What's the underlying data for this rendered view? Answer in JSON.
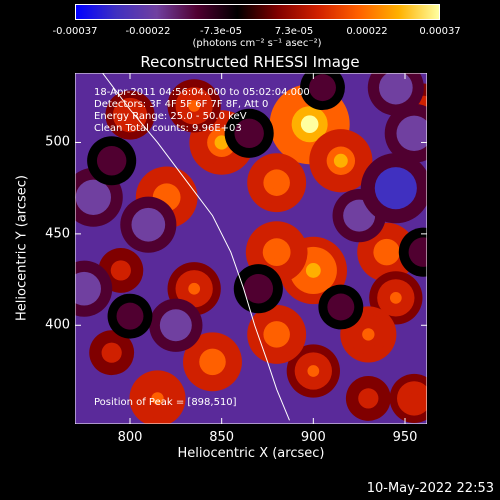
{
  "colorbar": {
    "ticks": [
      "-0.00037",
      "-0.00022",
      "-7.3e-05",
      "7.3e-05",
      "0.00022",
      "0.00037"
    ],
    "unit_label": "(photons cm⁻² s⁻¹ asec⁻²)",
    "stops": [
      "#0000ff",
      "#4030c0",
      "#7040a0",
      "#500030",
      "#000000",
      "#800000",
      "#d02000",
      "#ff6000",
      "#ffb000",
      "#ffffa0"
    ]
  },
  "annotations": {
    "time": "18-Apr-2011 04:56:04.000 to 05:02:04.000",
    "detectors": "Detectors: 3F 4F 5F 6F 7F 8F, Att 0",
    "energy": "Energy Range: 25.0 - 50.0 keV",
    "clean": "Clean     Total counts: 9.96E+03",
    "peak": "Position of Peak = [898,510]"
  },
  "footer": {
    "date": "10-May-2022 22:53"
  },
  "chart_data": {
    "type": "heatmap",
    "title": "Reconstructed RHESSI Image",
    "xlabel": "Heliocentric X (arcsec)",
    "ylabel": "Heliocentric Y (arcsec)",
    "xlim": [
      770,
      962
    ],
    "ylim": [
      346,
      538
    ],
    "xticks": [
      800,
      850,
      900,
      950
    ],
    "yticks": [
      400,
      450,
      500
    ],
    "zlim": [
      -0.00037,
      0.00037
    ],
    "limb_curve": [
      [
        785,
        538
      ],
      [
        800,
        518
      ],
      [
        815,
        500
      ],
      [
        830,
        480
      ],
      [
        845,
        460
      ],
      [
        855,
        440
      ],
      [
        862,
        420
      ],
      [
        868,
        400
      ],
      [
        875,
        380
      ],
      [
        880,
        365
      ],
      [
        887,
        348
      ]
    ],
    "peak_position": [
      898,
      510
    ],
    "blobs": [
      {
        "x": 898,
        "y": 510,
        "value": 0.00037
      },
      {
        "x": 915,
        "y": 490,
        "value": 0.00025
      },
      {
        "x": 880,
        "y": 478,
        "value": 0.00022
      },
      {
        "x": 850,
        "y": 500,
        "value": 0.00026
      },
      {
        "x": 835,
        "y": 520,
        "value": 0.00018
      },
      {
        "x": 820,
        "y": 470,
        "value": 0.00024
      },
      {
        "x": 800,
        "y": 515,
        "value": 0.00015
      },
      {
        "x": 795,
        "y": 430,
        "value": 0.00012
      },
      {
        "x": 900,
        "y": 430,
        "value": 0.00028
      },
      {
        "x": 880,
        "y": 440,
        "value": 0.00024
      },
      {
        "x": 940,
        "y": 440,
        "value": 0.00022
      },
      {
        "x": 945,
        "y": 415,
        "value": 0.00018
      },
      {
        "x": 930,
        "y": 395,
        "value": 0.0002
      },
      {
        "x": 900,
        "y": 375,
        "value": 0.00018
      },
      {
        "x": 880,
        "y": 395,
        "value": 0.00022
      },
      {
        "x": 835,
        "y": 420,
        "value": 0.00018
      },
      {
        "x": 845,
        "y": 380,
        "value": 0.00022
      },
      {
        "x": 790,
        "y": 385,
        "value": 0.00012
      },
      {
        "x": 815,
        "y": 360,
        "value": 0.0002
      },
      {
        "x": 930,
        "y": 360,
        "value": 0.00012
      },
      {
        "x": 955,
        "y": 360,
        "value": 0.00015
      },
      {
        "x": 960,
        "y": 520,
        "value": 0.00012
      },
      {
        "x": 810,
        "y": 455,
        "value": -0.0002
      },
      {
        "x": 780,
        "y": 470,
        "value": -0.00022
      },
      {
        "x": 790,
        "y": 490,
        "value": -0.00015
      },
      {
        "x": 775,
        "y": 420,
        "value": -0.0002
      },
      {
        "x": 865,
        "y": 505,
        "value": -0.00015
      },
      {
        "x": 870,
        "y": 420,
        "value": -0.00015
      },
      {
        "x": 925,
        "y": 460,
        "value": -0.00018
      },
      {
        "x": 945,
        "y": 475,
        "value": -0.0003
      },
      {
        "x": 955,
        "y": 505,
        "value": -0.00022
      },
      {
        "x": 945,
        "y": 530,
        "value": -0.0002
      },
      {
        "x": 905,
        "y": 530,
        "value": -0.00012
      },
      {
        "x": 825,
        "y": 400,
        "value": -0.00018
      },
      {
        "x": 800,
        "y": 405,
        "value": -0.00012
      },
      {
        "x": 960,
        "y": 440,
        "value": -0.00015
      },
      {
        "x": 915,
        "y": 410,
        "value": -0.00012
      }
    ]
  }
}
